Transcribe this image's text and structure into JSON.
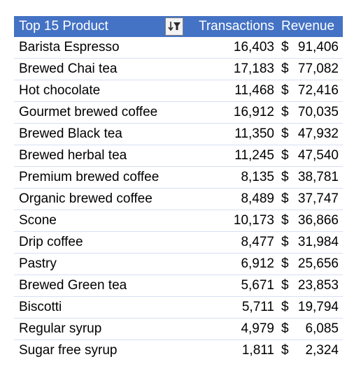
{
  "pivot": {
    "headers": {
      "product": "Top 15 Product",
      "transactions": "Transactions",
      "revenue": "Revenue"
    },
    "currency_symbol": "$",
    "header_color": "#4472c4",
    "filter_icon": "sort-filter-icon",
    "rows": [
      {
        "product": "Barista Espresso",
        "transactions": "16,403",
        "revenue": "91,406"
      },
      {
        "product": "Brewed Chai tea",
        "transactions": "17,183",
        "revenue": "77,082"
      },
      {
        "product": "Hot chocolate",
        "transactions": "11,468",
        "revenue": "72,416"
      },
      {
        "product": "Gourmet brewed coffee",
        "transactions": "16,912",
        "revenue": "70,035"
      },
      {
        "product": "Brewed Black tea",
        "transactions": "11,350",
        "revenue": "47,932"
      },
      {
        "product": "Brewed herbal tea",
        "transactions": "11,245",
        "revenue": "47,540"
      },
      {
        "product": "Premium brewed coffee",
        "transactions": "8,135",
        "revenue": "38,781"
      },
      {
        "product": "Organic brewed coffee",
        "transactions": "8,489",
        "revenue": "37,747"
      },
      {
        "product": "Scone",
        "transactions": "10,173",
        "revenue": "36,866"
      },
      {
        "product": "Drip coffee",
        "transactions": "8,477",
        "revenue": "31,984"
      },
      {
        "product": "Pastry",
        "transactions": "6,912",
        "revenue": "25,656"
      },
      {
        "product": "Brewed Green tea",
        "transactions": "5,671",
        "revenue": "23,853"
      },
      {
        "product": "Biscotti",
        "transactions": "5,711",
        "revenue": "19,794"
      },
      {
        "product": "Regular syrup",
        "transactions": "4,979",
        "revenue": "6,085"
      },
      {
        "product": "Sugar free syrup",
        "transactions": "1,811",
        "revenue": "2,324"
      }
    ]
  }
}
